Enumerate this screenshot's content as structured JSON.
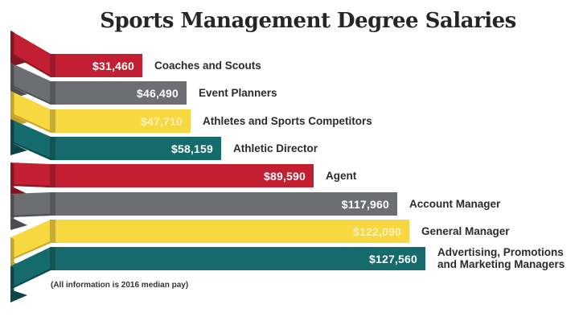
{
  "title": "Sports Management Degree Salaries",
  "note": "(All information is 2016 median pay)",
  "chart_data": {
    "type": "bar",
    "orientation": "horizontal",
    "title": "Sports Management Degree Salaries",
    "note": "(All information is 2016 median pay)",
    "unit": "USD (2016 median annual pay)",
    "legend": "none",
    "axes": "none",
    "xlim": [
      0,
      130000
    ],
    "categories": [
      "Coaches and Scouts",
      "Event Planners",
      "Athletes and Sports Competitors",
      "Athletic Director",
      "Agent",
      "Account Manager",
      "General Manager",
      "Advertising, Promotions and Marketing Managers"
    ],
    "values": [
      31460,
      46490,
      47710,
      58159,
      89590,
      117960,
      122090,
      127560
    ],
    "value_labels": [
      "$31,460",
      "$46,490",
      "$47,710",
      "$58,159",
      "$89,590",
      "$117,960",
      "$122,090",
      "$127,560"
    ],
    "bar_colors": [
      "#c22032",
      "#6d6e71",
      "#f8d841",
      "#156a6c",
      "#c22032",
      "#6d6e71",
      "#f8d841",
      "#156a6c"
    ],
    "bar_dark_colors": [
      "#82151f",
      "#4c4d50",
      "#bfa026",
      "#0b4547",
      "#82151f",
      "#4c4d50",
      "#bfa026",
      "#0b4547"
    ],
    "value_text_colors": [
      "#ffffff",
      "#ffffff",
      "#fbf0bc",
      "#ffffff",
      "#ffffff",
      "#ffffff",
      "#fbf0bc",
      "#ffffff"
    ],
    "title_color": "#262626",
    "label_color": "#2b2b2b",
    "background_color": "#ffffff"
  }
}
